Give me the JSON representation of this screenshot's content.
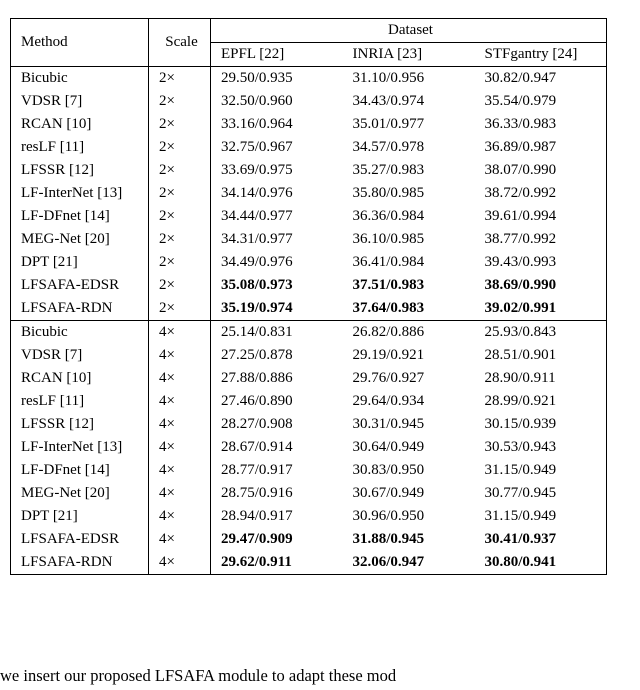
{
  "table": {
    "header": {
      "method": "Method",
      "scale": "Scale",
      "dataset_group": "Dataset",
      "datasets": [
        {
          "label": "EPFL",
          "ref": "[22]"
        },
        {
          "label": "INRIA",
          "ref": "[23]"
        },
        {
          "label": "STFgantry",
          "ref": "[24]"
        }
      ]
    },
    "blocks": [
      {
        "rows": [
          {
            "method": "Bicubic",
            "ref": "",
            "scale": "2×",
            "v": [
              "29.50/0.935",
              "31.10/0.956",
              "30.82/0.947"
            ],
            "bold": false
          },
          {
            "method": "VDSR",
            "ref": "[7]",
            "scale": "2×",
            "v": [
              "32.50/0.960",
              "34.43/0.974",
              "35.54/0.979"
            ],
            "bold": false
          },
          {
            "method": "RCAN",
            "ref": "[10]",
            "scale": "2×",
            "v": [
              "33.16/0.964",
              "35.01/0.977",
              "36.33/0.983"
            ],
            "bold": false
          },
          {
            "method": "resLF",
            "ref": "[11]",
            "scale": "2×",
            "v": [
              "32.75/0.967",
              "34.57/0.978",
              "36.89/0.987"
            ],
            "bold": false
          },
          {
            "method": "LFSSR",
            "ref": "[12]",
            "scale": "2×",
            "v": [
              "33.69/0.975",
              "35.27/0.983",
              "38.07/0.990"
            ],
            "bold": false
          },
          {
            "method": "LF-InterNet",
            "ref": "[13]",
            "scale": "2×",
            "v": [
              "34.14/0.976",
              "35.80/0.985",
              "38.72/0.992"
            ],
            "bold": false
          },
          {
            "method": "LF-DFnet",
            "ref": "[14]",
            "scale": "2×",
            "v": [
              "34.44/0.977",
              "36.36/0.984",
              "39.61/0.994"
            ],
            "bold": false
          },
          {
            "method": "MEG-Net",
            "ref": "[20]",
            "scale": "2×",
            "v": [
              "34.31/0.977",
              "36.10/0.985",
              "38.77/0.992"
            ],
            "bold": false
          },
          {
            "method": "DPT",
            "ref": "[21]",
            "scale": "2×",
            "v": [
              "34.49/0.976",
              "36.41/0.984",
              "39.43/0.993"
            ],
            "bold": false
          },
          {
            "method": "LFSAFA-EDSR",
            "ref": "",
            "scale": "2×",
            "v": [
              "35.08/0.973",
              "37.51/0.983",
              "38.69/0.990"
            ],
            "bold": true
          },
          {
            "method": "LFSAFA-RDN",
            "ref": "",
            "scale": "2×",
            "v": [
              "35.19/0.974",
              "37.64/0.983",
              "39.02/0.991"
            ],
            "bold": true
          }
        ]
      },
      {
        "rows": [
          {
            "method": "Bicubic",
            "ref": "",
            "scale": "4×",
            "v": [
              "25.14/0.831",
              "26.82/0.886",
              "25.93/0.843"
            ],
            "bold": false
          },
          {
            "method": "VDSR",
            "ref": "[7]",
            "scale": "4×",
            "v": [
              "27.25/0.878",
              "29.19/0.921",
              "28.51/0.901"
            ],
            "bold": false
          },
          {
            "method": "RCAN",
            "ref": "[10]",
            "scale": "4×",
            "v": [
              "27.88/0.886",
              "29.76/0.927",
              "28.90/0.911"
            ],
            "bold": false
          },
          {
            "method": "resLF",
            "ref": "[11]",
            "scale": "4×",
            "v": [
              "27.46/0.890",
              "29.64/0.934",
              "28.99/0.921"
            ],
            "bold": false
          },
          {
            "method": "LFSSR",
            "ref": "[12]",
            "scale": "4×",
            "v": [
              "28.27/0.908",
              "30.31/0.945",
              "30.15/0.939"
            ],
            "bold": false
          },
          {
            "method": "LF-InterNet",
            "ref": "[13]",
            "scale": "4×",
            "v": [
              "28.67/0.914",
              "30.64/0.949",
              "30.53/0.943"
            ],
            "bold": false
          },
          {
            "method": "LF-DFnet",
            "ref": "[14]",
            "scale": "4×",
            "v": [
              "28.77/0.917",
              "30.83/0.950",
              "31.15/0.949"
            ],
            "bold": false
          },
          {
            "method": "MEG-Net",
            "ref": "[20]",
            "scale": "4×",
            "v": [
              "28.75/0.916",
              "30.67/0.949",
              "30.77/0.945"
            ],
            "bold": false
          },
          {
            "method": "DPT",
            "ref": "[21]",
            "scale": "4×",
            "v": [
              "28.94/0.917",
              "30.96/0.950",
              "31.15/0.949"
            ],
            "bold": false
          },
          {
            "method": "LFSAFA-EDSR",
            "ref": "",
            "scale": "4×",
            "v": [
              "29.47/0.909",
              "31.88/0.945",
              "30.41/0.937"
            ],
            "bold": true
          },
          {
            "method": "LFSAFA-RDN",
            "ref": "",
            "scale": "4×",
            "v": [
              "29.62/0.911",
              "32.06/0.947",
              "30.80/0.941"
            ],
            "bold": true
          }
        ]
      }
    ]
  },
  "footer_fragment": "we insert our proposed LFSAFA module to adapt these mod"
}
